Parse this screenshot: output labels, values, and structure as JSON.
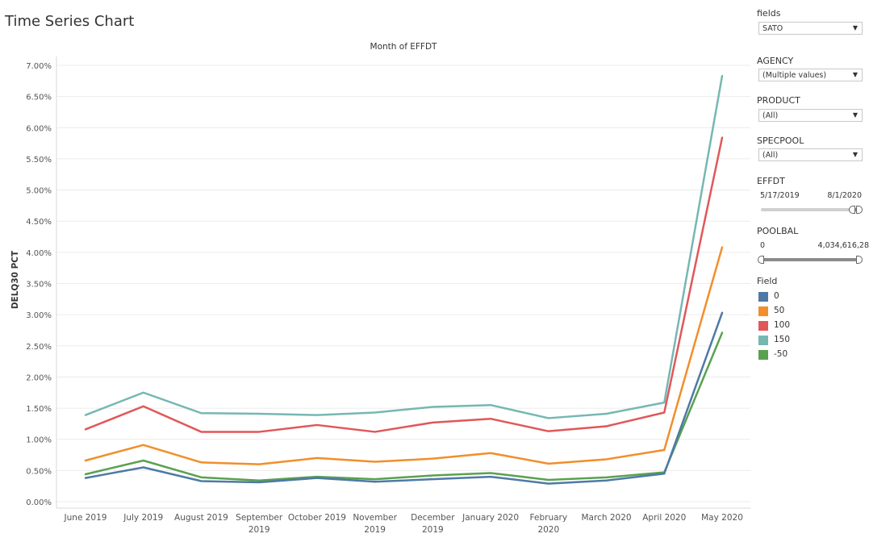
{
  "page_title": "Time Series Chart",
  "filters": {
    "fields": {
      "label": "fields",
      "value": "SATO"
    },
    "agency": {
      "label": "AGENCY",
      "value": "(Multiple values)"
    },
    "product": {
      "label": "PRODUCT",
      "value": "(All)"
    },
    "specpool": {
      "label": "SPECPOOL",
      "value": "(All)"
    },
    "effdt": {
      "label": "EFFDT",
      "min": "5/17/2019",
      "max": "8/1/2020",
      "low_frac": 0.93,
      "high_frac": 1.0
    },
    "poolbal": {
      "label": "POOLBAL",
      "min": "0",
      "max": "4,034,616,28",
      "low_frac": 0.0,
      "high_frac": 1.0
    }
  },
  "legend": {
    "title": "Field",
    "items": [
      {
        "label": "0",
        "color": "#4e79a7"
      },
      {
        "label": "50",
        "color": "#f28e2b"
      },
      {
        "label": "100",
        "color": "#e15759"
      },
      {
        "label": "150",
        "color": "#76b7b2"
      },
      {
        "label": "-50",
        "color": "#59a14f"
      }
    ]
  },
  "chart_data": {
    "type": "line",
    "title": "Month of EFFDT",
    "xlabel": "",
    "ylabel": "DELQ30 PCT",
    "categories": [
      "June 2019",
      "July 2019",
      "August 2019",
      "September 2019",
      "October 2019",
      "November 2019",
      "December 2019",
      "January 2020",
      "February 2020",
      "March 2020",
      "April 2020",
      "May 2020"
    ],
    "y_ticks": [
      "0.00%",
      "0.50%",
      "1.00%",
      "1.50%",
      "2.00%",
      "2.50%",
      "3.00%",
      "3.50%",
      "4.00%",
      "4.50%",
      "5.00%",
      "5.50%",
      "6.00%",
      "6.50%",
      "7.00%"
    ],
    "ylim": [
      0,
      7.2
    ],
    "grid": true,
    "series": [
      {
        "name": "0",
        "color": "#4e79a7",
        "values": [
          0.38,
          0.55,
          0.33,
          0.31,
          0.38,
          0.32,
          0.36,
          0.4,
          0.29,
          0.34,
          0.45,
          3.03
        ]
      },
      {
        "name": "50",
        "color": "#f28e2b",
        "values": [
          0.66,
          0.91,
          0.63,
          0.6,
          0.7,
          0.64,
          0.69,
          0.78,
          0.61,
          0.68,
          0.83,
          4.08
        ]
      },
      {
        "name": "100",
        "color": "#e15759",
        "values": [
          1.16,
          1.53,
          1.12,
          1.12,
          1.23,
          1.12,
          1.27,
          1.33,
          1.13,
          1.21,
          1.43,
          5.84
        ]
      },
      {
        "name": "150",
        "color": "#76b7b2",
        "values": [
          1.39,
          1.75,
          1.42,
          1.41,
          1.39,
          1.43,
          1.52,
          1.55,
          1.34,
          1.41,
          1.59,
          6.83
        ]
      },
      {
        "name": "-50",
        "color": "#59a14f",
        "values": [
          0.44,
          0.66,
          0.39,
          0.34,
          0.4,
          0.36,
          0.42,
          0.46,
          0.35,
          0.39,
          0.47,
          2.71
        ]
      }
    ]
  }
}
